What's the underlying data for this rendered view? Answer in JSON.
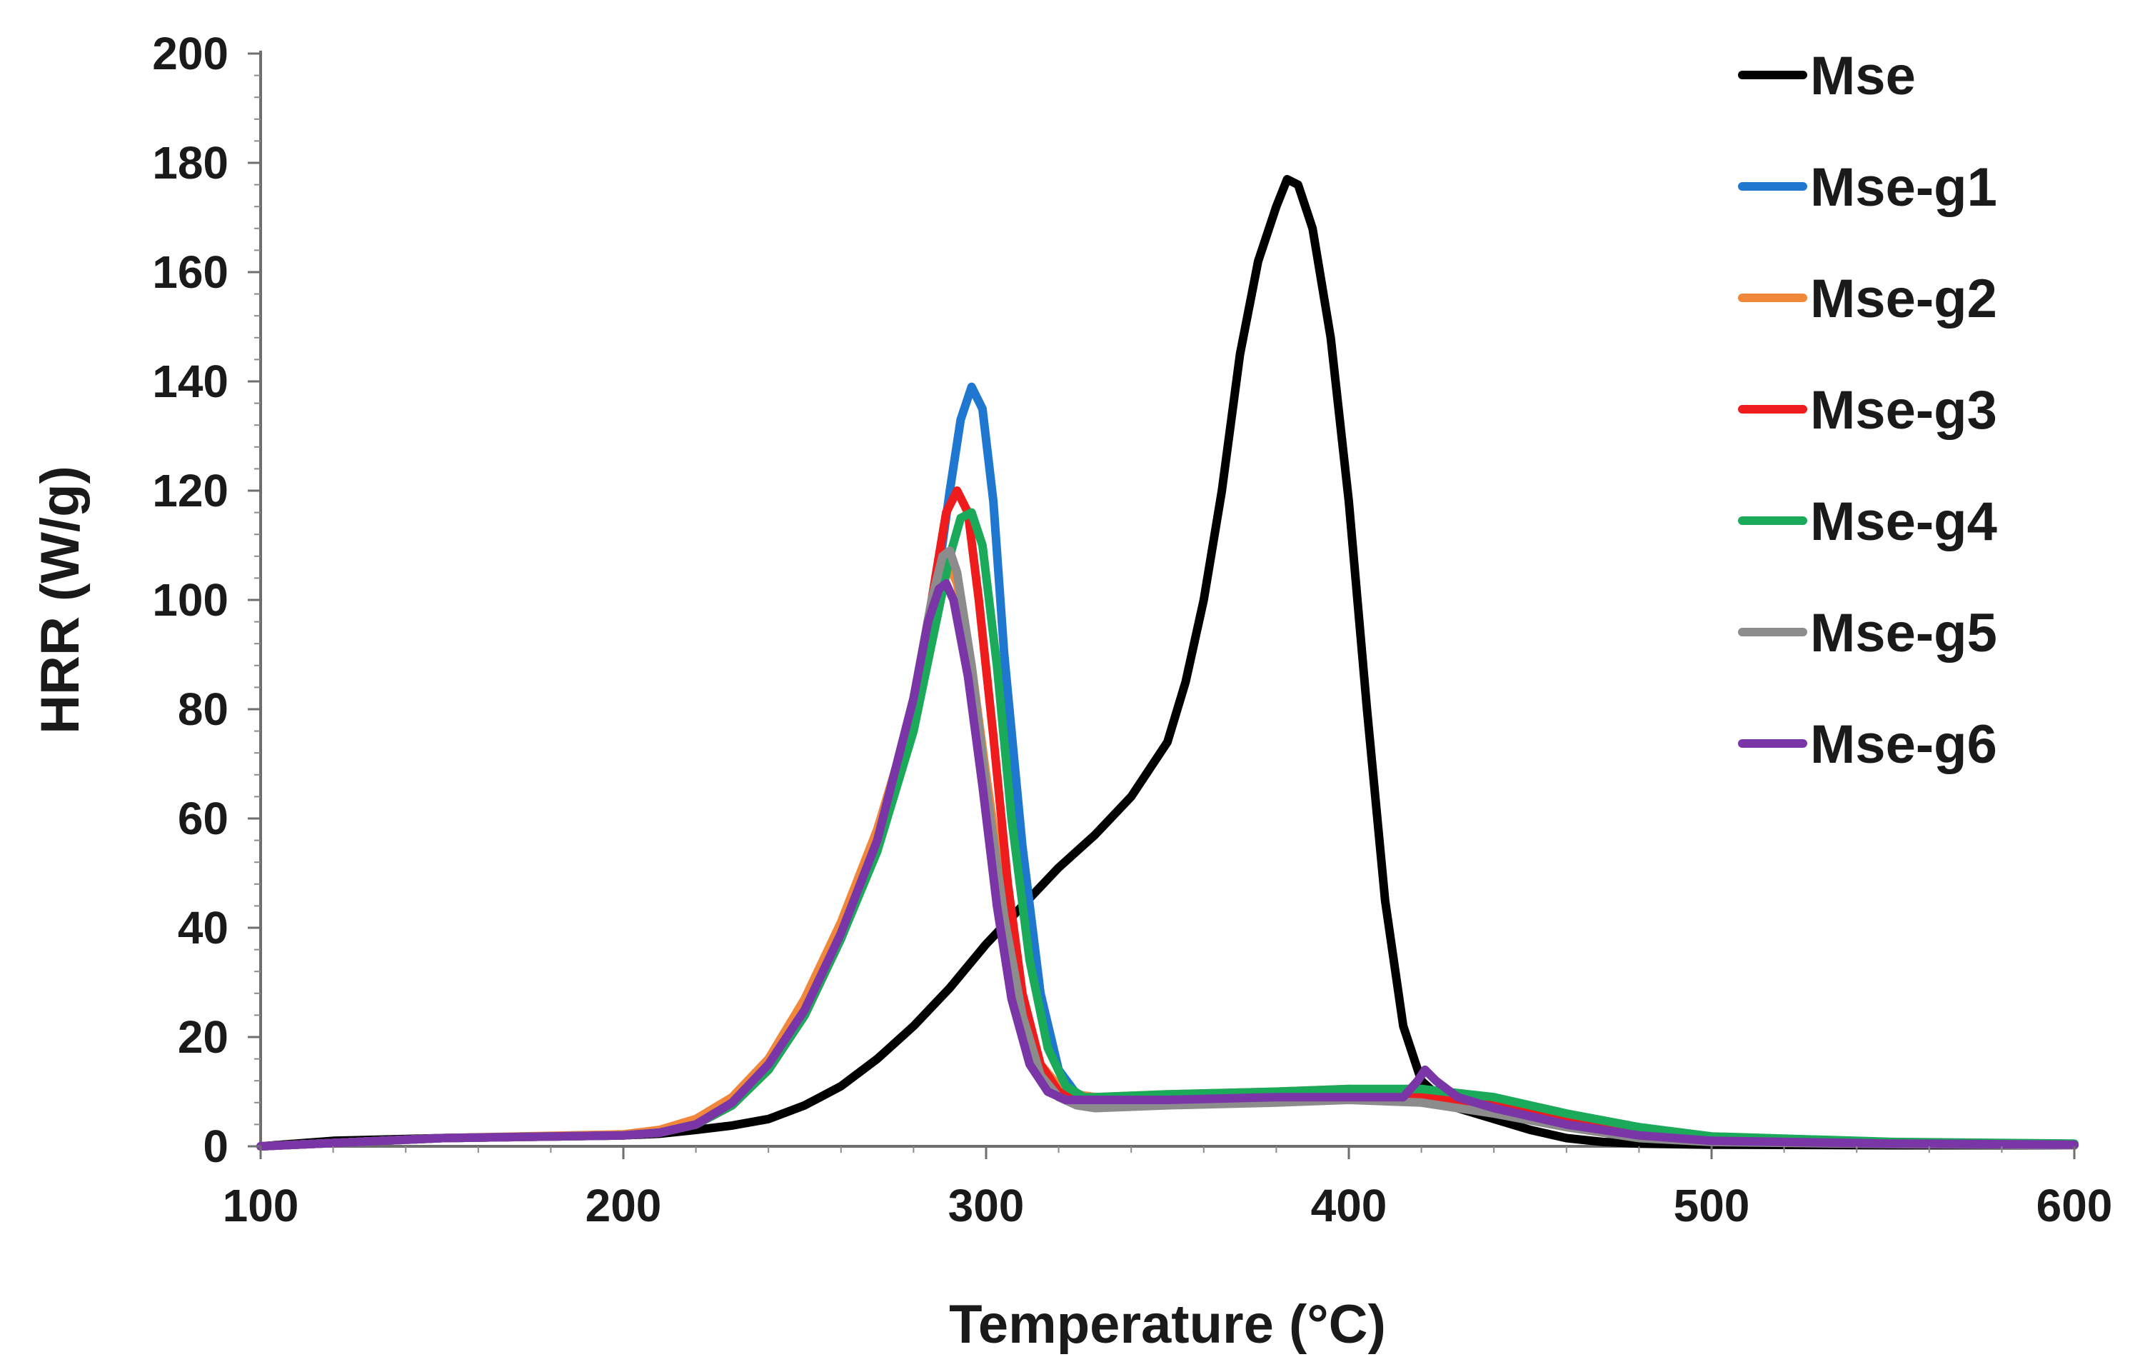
{
  "chart_data": {
    "type": "line",
    "title": "",
    "xlabel": "Temperature (°C)",
    "ylabel": "HRR (W/g)",
    "xlim": [
      100,
      600
    ],
    "ylim": [
      0,
      200
    ],
    "x_ticks": [
      100,
      200,
      300,
      400,
      500,
      600
    ],
    "y_ticks": [
      0,
      20,
      40,
      60,
      80,
      100,
      120,
      140,
      160,
      180,
      200
    ],
    "grid": false,
    "legend_position": "right",
    "series": [
      {
        "name": "Mse",
        "color": "#000000",
        "points": [
          [
            100,
            0
          ],
          [
            120,
            1
          ],
          [
            150,
            1.5
          ],
          [
            180,
            1.8
          ],
          [
            200,
            2
          ],
          [
            210,
            2.3
          ],
          [
            220,
            3
          ],
          [
            230,
            3.8
          ],
          [
            240,
            5
          ],
          [
            250,
            7.5
          ],
          [
            260,
            11
          ],
          [
            270,
            16
          ],
          [
            280,
            22
          ],
          [
            290,
            29
          ],
          [
            300,
            37
          ],
          [
            310,
            44
          ],
          [
            320,
            51
          ],
          [
            330,
            57
          ],
          [
            340,
            64
          ],
          [
            350,
            74
          ],
          [
            355,
            85
          ],
          [
            360,
            100
          ],
          [
            365,
            120
          ],
          [
            370,
            145
          ],
          [
            375,
            162
          ],
          [
            380,
            172
          ],
          [
            383,
            177
          ],
          [
            386,
            176
          ],
          [
            390,
            168
          ],
          [
            395,
            148
          ],
          [
            400,
            118
          ],
          [
            405,
            80
          ],
          [
            410,
            45
          ],
          [
            415,
            22
          ],
          [
            420,
            12
          ],
          [
            425,
            9
          ],
          [
            430,
            7
          ],
          [
            440,
            5
          ],
          [
            450,
            3
          ],
          [
            460,
            1.5
          ],
          [
            470,
            0.8
          ],
          [
            480,
            0.5
          ],
          [
            500,
            0.3
          ],
          [
            550,
            0.2
          ],
          [
            600,
            0.2
          ]
        ]
      },
      {
        "name": "Mse-g1",
        "color": "#1f77d0",
        "points": [
          [
            100,
            0
          ],
          [
            150,
            1.5
          ],
          [
            200,
            2
          ],
          [
            210,
            2.5
          ],
          [
            220,
            4
          ],
          [
            230,
            8
          ],
          [
            240,
            14
          ],
          [
            250,
            24
          ],
          [
            260,
            38
          ],
          [
            270,
            55
          ],
          [
            280,
            78
          ],
          [
            285,
            96
          ],
          [
            290,
            120
          ],
          [
            293,
            133
          ],
          [
            296,
            139
          ],
          [
            299,
            135
          ],
          [
            302,
            118
          ],
          [
            305,
            90
          ],
          [
            310,
            55
          ],
          [
            315,
            28
          ],
          [
            320,
            14
          ],
          [
            325,
            9.5
          ],
          [
            330,
            8.5
          ],
          [
            350,
            9
          ],
          [
            380,
            9.5
          ],
          [
            400,
            10
          ],
          [
            420,
            9.5
          ],
          [
            440,
            7
          ],
          [
            460,
            4
          ],
          [
            480,
            2
          ],
          [
            500,
            1
          ],
          [
            550,
            0.5
          ],
          [
            600,
            0.3
          ]
        ]
      },
      {
        "name": "Mse-g2",
        "color": "#f0873a",
        "points": [
          [
            100,
            0
          ],
          [
            150,
            1.5
          ],
          [
            200,
            2.2
          ],
          [
            210,
            3
          ],
          [
            220,
            5
          ],
          [
            230,
            9
          ],
          [
            240,
            16
          ],
          [
            250,
            27
          ],
          [
            260,
            41
          ],
          [
            270,
            58
          ],
          [
            280,
            80
          ],
          [
            285,
            95
          ],
          [
            288,
            104
          ],
          [
            290,
            106
          ],
          [
            292,
            103
          ],
          [
            296,
            88
          ],
          [
            300,
            68
          ],
          [
            305,
            45
          ],
          [
            310,
            26
          ],
          [
            315,
            15
          ],
          [
            320,
            11
          ],
          [
            325,
            9.5
          ],
          [
            330,
            9
          ],
          [
            350,
            9.5
          ],
          [
            380,
            10
          ],
          [
            400,
            10.5
          ],
          [
            420,
            10
          ],
          [
            440,
            8
          ],
          [
            460,
            5
          ],
          [
            480,
            3
          ],
          [
            500,
            1.5
          ],
          [
            550,
            0.6
          ],
          [
            600,
            0.4
          ]
        ]
      },
      {
        "name": "Mse-g3",
        "color": "#ee1c1c",
        "points": [
          [
            100,
            0
          ],
          [
            150,
            1.5
          ],
          [
            200,
            2
          ],
          [
            210,
            2.5
          ],
          [
            220,
            4
          ],
          [
            230,
            7.5
          ],
          [
            240,
            14
          ],
          [
            250,
            24
          ],
          [
            260,
            38
          ],
          [
            270,
            55
          ],
          [
            280,
            80
          ],
          [
            285,
            100
          ],
          [
            289,
            116
          ],
          [
            292,
            120
          ],
          [
            295,
            116
          ],
          [
            298,
            100
          ],
          [
            302,
            75
          ],
          [
            306,
            48
          ],
          [
            310,
            28
          ],
          [
            315,
            15
          ],
          [
            320,
            10
          ],
          [
            325,
            8.5
          ],
          [
            330,
            8.5
          ],
          [
            350,
            9
          ],
          [
            380,
            9.5
          ],
          [
            400,
            10
          ],
          [
            420,
            9.5
          ],
          [
            440,
            7.5
          ],
          [
            460,
            4.5
          ],
          [
            480,
            2.5
          ],
          [
            500,
            1.2
          ],
          [
            550,
            0.5
          ],
          [
            600,
            0.3
          ]
        ]
      },
      {
        "name": "Mse-g4",
        "color": "#1aaa5a",
        "points": [
          [
            100,
            0
          ],
          [
            150,
            1.5
          ],
          [
            200,
            2
          ],
          [
            210,
            2.5
          ],
          [
            220,
            4
          ],
          [
            230,
            7.5
          ],
          [
            240,
            14
          ],
          [
            250,
            24
          ],
          [
            260,
            38
          ],
          [
            270,
            54
          ],
          [
            280,
            76
          ],
          [
            285,
            92
          ],
          [
            290,
            108
          ],
          [
            293,
            115
          ],
          [
            296,
            116
          ],
          [
            299,
            110
          ],
          [
            303,
            88
          ],
          [
            307,
            60
          ],
          [
            312,
            34
          ],
          [
            317,
            18
          ],
          [
            322,
            11
          ],
          [
            327,
            9
          ],
          [
            330,
            9
          ],
          [
            350,
            9.5
          ],
          [
            380,
            10
          ],
          [
            400,
            10.5
          ],
          [
            420,
            10.5
          ],
          [
            440,
            9
          ],
          [
            460,
            6
          ],
          [
            480,
            3.5
          ],
          [
            500,
            1.8
          ],
          [
            550,
            0.8
          ],
          [
            600,
            0.5
          ]
        ]
      },
      {
        "name": "Mse-g5",
        "color": "#8c8c8c",
        "points": [
          [
            100,
            0
          ],
          [
            150,
            1.5
          ],
          [
            200,
            2
          ],
          [
            210,
            2.5
          ],
          [
            220,
            4
          ],
          [
            230,
            8
          ],
          [
            240,
            15
          ],
          [
            250,
            25
          ],
          [
            260,
            39
          ],
          [
            270,
            56
          ],
          [
            280,
            82
          ],
          [
            285,
            100
          ],
          [
            288,
            108
          ],
          [
            290,
            109
          ],
          [
            292,
            105
          ],
          [
            296,
            88
          ],
          [
            300,
            66
          ],
          [
            305,
            42
          ],
          [
            310,
            24
          ],
          [
            315,
            13
          ],
          [
            320,
            9
          ],
          [
            325,
            7.5
          ],
          [
            330,
            7
          ],
          [
            350,
            7.5
          ],
          [
            380,
            8
          ],
          [
            400,
            8.5
          ],
          [
            420,
            8
          ],
          [
            440,
            6
          ],
          [
            460,
            3.5
          ],
          [
            480,
            1.5
          ],
          [
            500,
            0.8
          ],
          [
            550,
            0.4
          ],
          [
            600,
            0.2
          ]
        ]
      },
      {
        "name": "Mse-g6",
        "color": "#7a35a6",
        "points": [
          [
            100,
            0
          ],
          [
            150,
            1.5
          ],
          [
            200,
            2
          ],
          [
            210,
            2.5
          ],
          [
            220,
            4
          ],
          [
            230,
            8
          ],
          [
            240,
            15
          ],
          [
            250,
            25
          ],
          [
            260,
            39
          ],
          [
            270,
            56
          ],
          [
            280,
            82
          ],
          [
            284,
            96
          ],
          [
            287,
            102
          ],
          [
            289,
            103
          ],
          [
            291,
            100
          ],
          [
            295,
            86
          ],
          [
            299,
            66
          ],
          [
            303,
            44
          ],
          [
            307,
            27
          ],
          [
            312,
            15
          ],
          [
            317,
            10
          ],
          [
            322,
            8.5
          ],
          [
            330,
            8.5
          ],
          [
            350,
            8.5
          ],
          [
            380,
            9
          ],
          [
            400,
            9
          ],
          [
            415,
            9
          ],
          [
            419,
            12
          ],
          [
            421,
            14
          ],
          [
            424,
            12
          ],
          [
            430,
            9
          ],
          [
            440,
            7
          ],
          [
            460,
            4
          ],
          [
            480,
            2
          ],
          [
            500,
            1
          ],
          [
            550,
            0.5
          ],
          [
            600,
            0.3
          ]
        ]
      }
    ]
  }
}
